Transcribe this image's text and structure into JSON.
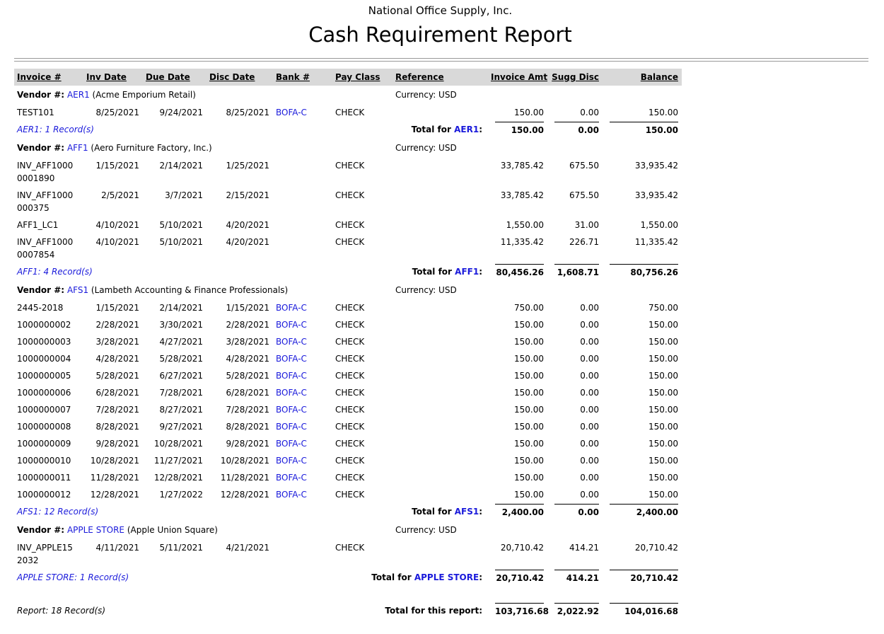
{
  "header": {
    "company": "National Office Supply, Inc.",
    "title": "Cash Requirement Report"
  },
  "columns": [
    "Invoice #",
    "Inv Date",
    "Due Date",
    "Disc Date",
    "Bank #",
    "Pay Class",
    "Reference",
    "Invoice Amt",
    "Sugg Disc",
    "Balance"
  ],
  "labels": {
    "vendor": "Vendor #:",
    "total_for": "Total for",
    "colon": ":"
  },
  "vendors": [
    {
      "id": "AER1",
      "name": "(Acme Emporium Retail)",
      "currency": "Currency: USD",
      "rows": [
        {
          "invoice": "TEST101",
          "inv_date": "8/25/2021",
          "due_date": "9/24/2021",
          "disc_date": "8/25/2021",
          "bank": "BOFA-C",
          "pay_class": "CHECK",
          "invoice_amt": "150.00",
          "sugg_disc": "0.00",
          "balance": "150.00"
        }
      ],
      "records": "AER1: 1 Record(s)",
      "totals": {
        "invoice_amt": "150.00",
        "sugg_disc": "0.00",
        "balance": "150.00"
      }
    },
    {
      "id": "AFF1",
      "name": "(Aero Furniture Factory, Inc.)",
      "currency": "Currency: USD",
      "rows": [
        {
          "invoice": "INV_AFF10000001890",
          "inv_date": "1/15/2021",
          "due_date": "2/14/2021",
          "disc_date": "1/25/2021",
          "pay_class": "CHECK",
          "invoice_amt": "33,785.42",
          "sugg_disc": "675.50",
          "balance": "33,935.42"
        },
        {
          "invoice": "INV_AFF1000000375",
          "inv_date": "2/5/2021",
          "due_date": "3/7/2021",
          "disc_date": "2/15/2021",
          "pay_class": "CHECK",
          "invoice_amt": "33,785.42",
          "sugg_disc": "675.50",
          "balance": "33,935.42"
        },
        {
          "invoice": "AFF1_LC1",
          "inv_date": "4/10/2021",
          "due_date": "5/10/2021",
          "disc_date": "4/20/2021",
          "pay_class": "CHECK",
          "invoice_amt": "1,550.00",
          "sugg_disc": "31.00",
          "balance": "1,550.00"
        },
        {
          "invoice": "INV_AFF10000007854",
          "inv_date": "4/10/2021",
          "due_date": "5/10/2021",
          "disc_date": "4/20/2021",
          "pay_class": "CHECK",
          "invoice_amt": "11,335.42",
          "sugg_disc": "226.71",
          "balance": "11,335.42"
        }
      ],
      "records": "AFF1: 4 Record(s)",
      "totals": {
        "invoice_amt": "80,456.26",
        "sugg_disc": "1,608.71",
        "balance": "80,756.26"
      }
    },
    {
      "id": "AFS1",
      "name": "(Lambeth Accounting & Finance Professionals)",
      "currency": "Currency: USD",
      "rows": [
        {
          "invoice": "2445-2018",
          "inv_date": "1/15/2021",
          "due_date": "2/14/2021",
          "disc_date": "1/15/2021",
          "bank": "BOFA-C",
          "pay_class": "CHECK",
          "invoice_amt": "750.00",
          "sugg_disc": "0.00",
          "balance": "750.00"
        },
        {
          "invoice": "1000000002",
          "inv_date": "2/28/2021",
          "due_date": "3/30/2021",
          "disc_date": "2/28/2021",
          "bank": "BOFA-C",
          "pay_class": "CHECK",
          "invoice_amt": "150.00",
          "sugg_disc": "0.00",
          "balance": "150.00"
        },
        {
          "invoice": "1000000003",
          "inv_date": "3/28/2021",
          "due_date": "4/27/2021",
          "disc_date": "3/28/2021",
          "bank": "BOFA-C",
          "pay_class": "CHECK",
          "invoice_amt": "150.00",
          "sugg_disc": "0.00",
          "balance": "150.00"
        },
        {
          "invoice": "1000000004",
          "inv_date": "4/28/2021",
          "due_date": "5/28/2021",
          "disc_date": "4/28/2021",
          "bank": "BOFA-C",
          "pay_class": "CHECK",
          "invoice_amt": "150.00",
          "sugg_disc": "0.00",
          "balance": "150.00"
        },
        {
          "invoice": "1000000005",
          "inv_date": "5/28/2021",
          "due_date": "6/27/2021",
          "disc_date": "5/28/2021",
          "bank": "BOFA-C",
          "pay_class": "CHECK",
          "invoice_amt": "150.00",
          "sugg_disc": "0.00",
          "balance": "150.00"
        },
        {
          "invoice": "1000000006",
          "inv_date": "6/28/2021",
          "due_date": "7/28/2021",
          "disc_date": "6/28/2021",
          "bank": "BOFA-C",
          "pay_class": "CHECK",
          "invoice_amt": "150.00",
          "sugg_disc": "0.00",
          "balance": "150.00"
        },
        {
          "invoice": "1000000007",
          "inv_date": "7/28/2021",
          "due_date": "8/27/2021",
          "disc_date": "7/28/2021",
          "bank": "BOFA-C",
          "pay_class": "CHECK",
          "invoice_amt": "150.00",
          "sugg_disc": "0.00",
          "balance": "150.00"
        },
        {
          "invoice": "1000000008",
          "inv_date": "8/28/2021",
          "due_date": "9/27/2021",
          "disc_date": "8/28/2021",
          "bank": "BOFA-C",
          "pay_class": "CHECK",
          "invoice_amt": "150.00",
          "sugg_disc": "0.00",
          "balance": "150.00"
        },
        {
          "invoice": "1000000009",
          "inv_date": "9/28/2021",
          "due_date": "10/28/2021",
          "disc_date": "9/28/2021",
          "bank": "BOFA-C",
          "pay_class": "CHECK",
          "invoice_amt": "150.00",
          "sugg_disc": "0.00",
          "balance": "150.00"
        },
        {
          "invoice": "1000000010",
          "inv_date": "10/28/2021",
          "due_date": "11/27/2021",
          "disc_date": "10/28/2021",
          "bank": "BOFA-C",
          "pay_class": "CHECK",
          "invoice_amt": "150.00",
          "sugg_disc": "0.00",
          "balance": "150.00"
        },
        {
          "invoice": "1000000011",
          "inv_date": "11/28/2021",
          "due_date": "12/28/2021",
          "disc_date": "11/28/2021",
          "bank": "BOFA-C",
          "pay_class": "CHECK",
          "invoice_amt": "150.00",
          "sugg_disc": "0.00",
          "balance": "150.00"
        },
        {
          "invoice": "1000000012",
          "inv_date": "12/28/2021",
          "due_date": "1/27/2022",
          "disc_date": "12/28/2021",
          "bank": "BOFA-C",
          "pay_class": "CHECK",
          "invoice_amt": "150.00",
          "sugg_disc": "0.00",
          "balance": "150.00"
        }
      ],
      "records": "AFS1: 12 Record(s)",
      "totals": {
        "invoice_amt": "2,400.00",
        "sugg_disc": "0.00",
        "balance": "2,400.00"
      }
    },
    {
      "id": "APPLE STORE",
      "name": "(Apple Union Square)",
      "currency": "Currency: USD",
      "rows": [
        {
          "invoice": "INV_APPLE152032",
          "inv_date": "4/11/2021",
          "due_date": "5/11/2021",
          "disc_date": "4/21/2021",
          "pay_class": "CHECK",
          "invoice_amt": "20,710.42",
          "sugg_disc": "414.21",
          "balance": "20,710.42"
        }
      ],
      "records": "APPLE STORE: 1 Record(s)",
      "totals": {
        "invoice_amt": "20,710.42",
        "sugg_disc": "414.21",
        "balance": "20,710.42"
      }
    }
  ],
  "report": {
    "records": "Report: 18 Record(s)",
    "total_label": "Total for this report:",
    "invoice_amt": "103,716.68",
    "sugg_disc": "2,022.92",
    "balance": "104,016.68"
  }
}
